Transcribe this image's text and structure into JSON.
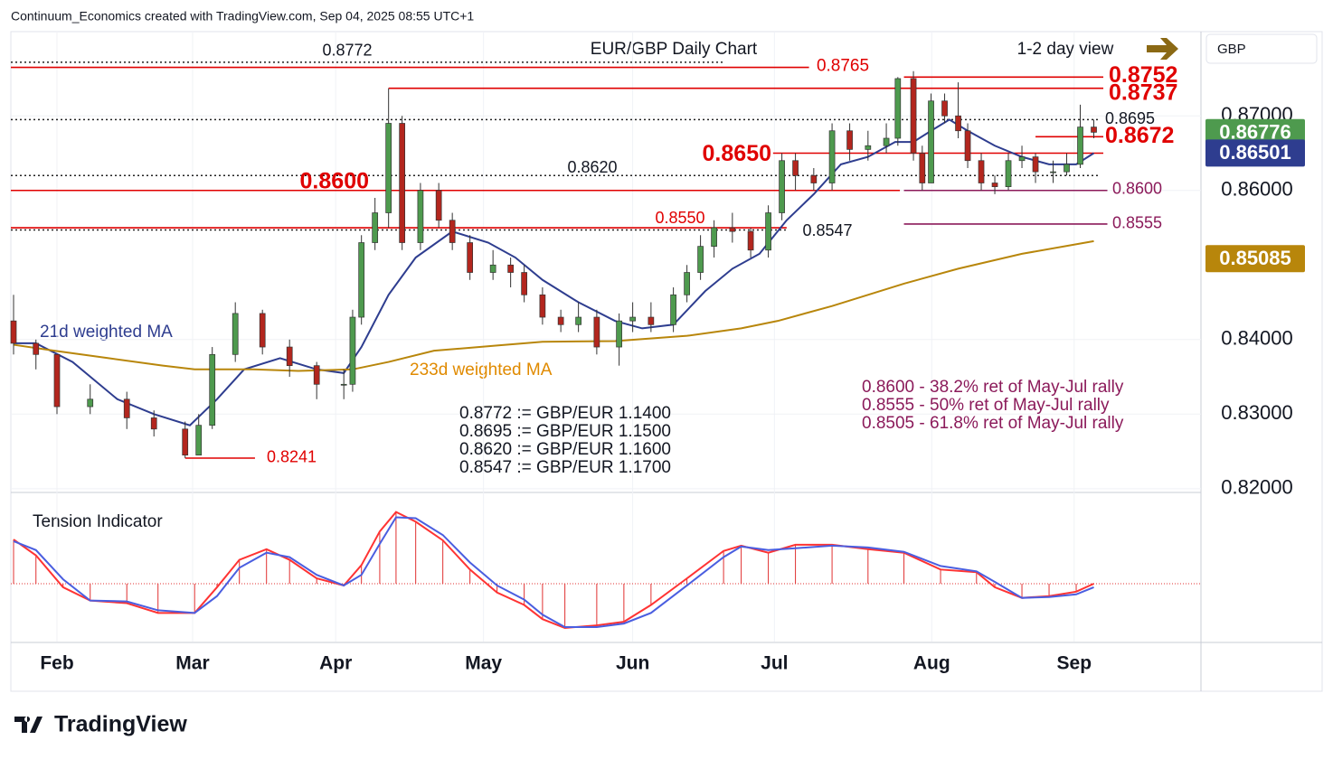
{
  "chart_data": {
    "type": "candlestick",
    "header": "Continuum_Economics created with TradingView.com, Sep 04, 2025 08:55 UTC+1",
    "title": "EUR/GBP Daily Chart",
    "view_note": "1-2 day view",
    "currency": "GBP",
    "brand": "TradingView",
    "up_color": "#4e9a4e",
    "down_color": "#b3261e",
    "x": [
      0.4,
      3.7,
      6.8,
      11.7,
      17.1,
      21.1,
      25.7,
      27.7,
      29.7,
      33.1,
      37.1,
      41.1,
      45.1,
      49.1,
      50.4,
      51.7,
      53.7,
      55.7,
      57.7,
      60.4,
      63.1,
      65.1,
      67.7,
      71.1,
      73.7,
      75.7,
      78.4,
      81.1,
      83.7,
      86.4,
      89.7,
      91.7,
      94.4,
      97.7,
      99.7,
      101.7,
      103.7,
      106.4,
      109.1,
      111.7,
      113.7,
      115.7,
      118.4,
      121.1,
      123.7,
      126.4,
      129.1,
      130.8,
      133.1,
      134.4,
      135.7,
      137.7,
      139.7,
      141.1,
      143.1,
      145.1,
      147.1,
      149.1,
      151.1,
      153.7,
      155.7,
      157.7,
      159.7
    ],
    "open": [
      0.8425,
      0.8395,
      0.838,
      0.831,
      0.832,
      0.8295,
      0.828,
      0.8245,
      0.8285,
      0.838,
      0.8435,
      0.839,
      0.8365,
      0.834,
      0.834,
      0.843,
      0.853,
      0.857,
      0.869,
      0.853,
      0.86,
      0.856,
      0.853,
      0.849,
      0.85,
      0.849,
      0.846,
      0.843,
      0.842,
      0.843,
      0.839,
      0.8425,
      0.843,
      0.842,
      0.846,
      0.849,
      0.8525,
      0.855,
      0.8545,
      0.852,
      0.857,
      0.864,
      0.862,
      0.861,
      0.868,
      0.8655,
      0.866,
      0.867,
      0.875,
      0.865,
      0.861,
      0.872,
      0.87,
      0.868,
      0.864,
      0.861,
      0.8605,
      0.864,
      0.8645,
      0.8625,
      0.8625,
      0.8635,
      0.8685
    ],
    "high": [
      0.846,
      0.84,
      0.838,
      0.834,
      0.833,
      0.8305,
      0.829,
      0.83,
      0.839,
      0.845,
      0.844,
      0.84,
      0.837,
      0.836,
      0.844,
      0.854,
      0.859,
      0.8737,
      0.87,
      0.861,
      0.861,
      0.857,
      0.854,
      0.852,
      0.851,
      0.85,
      0.847,
      0.844,
      0.845,
      0.844,
      0.8435,
      0.845,
      0.845,
      0.847,
      0.85,
      0.854,
      0.856,
      0.857,
      0.855,
      0.858,
      0.865,
      0.865,
      0.863,
      0.869,
      0.869,
      0.868,
      0.869,
      0.8752,
      0.876,
      0.866,
      0.873,
      0.873,
      0.8745,
      0.869,
      0.865,
      0.862,
      0.865,
      0.866,
      0.865,
      0.864,
      0.865,
      0.8715,
      0.8695
    ],
    "low": [
      0.838,
      0.836,
      0.83,
      0.83,
      0.828,
      0.827,
      0.8241,
      0.8245,
      0.828,
      0.837,
      0.838,
      0.835,
      0.832,
      0.832,
      0.833,
      0.842,
      0.852,
      0.855,
      0.852,
      0.852,
      0.855,
      0.852,
      0.848,
      0.848,
      0.847,
      0.845,
      0.842,
      0.841,
      0.841,
      0.838,
      0.8365,
      0.841,
      0.841,
      0.841,
      0.845,
      0.848,
      0.851,
      0.853,
      0.851,
      0.851,
      0.856,
      0.86,
      0.86,
      0.86,
      0.864,
      0.864,
      0.865,
      0.866,
      0.864,
      0.86,
      0.861,
      0.869,
      0.867,
      0.863,
      0.86,
      0.8595,
      0.86,
      0.863,
      0.861,
      0.861,
      0.862,
      0.863,
      0.867
    ],
    "close": [
      0.8395,
      0.838,
      0.831,
      0.832,
      0.8295,
      0.828,
      0.8245,
      0.8285,
      0.838,
      0.8435,
      0.839,
      0.8365,
      0.834,
      0.834,
      0.843,
      0.853,
      0.857,
      0.869,
      0.853,
      0.86,
      0.856,
      0.853,
      0.849,
      0.85,
      0.849,
      0.846,
      0.843,
      0.842,
      0.843,
      0.839,
      0.8425,
      0.843,
      0.842,
      0.846,
      0.849,
      0.8525,
      0.855,
      0.8545,
      0.852,
      0.857,
      0.864,
      0.862,
      0.861,
      0.868,
      0.8655,
      0.866,
      0.867,
      0.875,
      0.865,
      0.861,
      0.872,
      0.87,
      0.868,
      0.864,
      0.861,
      0.8605,
      0.864,
      0.8645,
      0.8625,
      0.8625,
      0.8635,
      0.8685,
      0.8678
    ],
    "xlim": [
      0,
      175.5
    ],
    "xticks": [
      {
        "value": 6.8,
        "label": "Feb"
      },
      {
        "value": 26.8,
        "label": "Mar"
      },
      {
        "value": 47.9,
        "label": "Apr"
      },
      {
        "value": 69.7,
        "label": "May"
      },
      {
        "value": 91.7,
        "label": "Jun"
      },
      {
        "value": 112.6,
        "label": "Jul"
      },
      {
        "value": 135.8,
        "label": "Aug"
      },
      {
        "value": 156.8,
        "label": "Sep"
      }
    ],
    "ylim": [
      0.8201,
      0.8813
    ],
    "yticks": [
      {
        "value": 0.82,
        "label": "0.82000"
      },
      {
        "value": 0.83,
        "label": "0.83000"
      },
      {
        "value": 0.84,
        "label": "0.84000"
      },
      {
        "value": 0.86,
        "label": "0.86000"
      },
      {
        "value": 0.87,
        "label": "0.87000"
      }
    ],
    "grid": true,
    "moving_averages": [
      {
        "name": "21d weighted MA",
        "color": "#2e3d8f",
        "x": [
          0.4,
          3.7,
          9.1,
          15.7,
          21.1,
          26.4,
          30.4,
          34.4,
          39.7,
          45.1,
          49.1,
          51.7,
          55.7,
          59.7,
          65.1,
          70.4,
          74.4,
          78.4,
          83.7,
          89.1,
          93.1,
          97.7,
          102.4,
          106.4,
          110.4,
          114.4,
          118.4,
          122.4,
          126.4,
          130.4,
          133.1,
          135.7,
          138.4,
          141.1,
          145.1,
          149.1,
          153.1,
          157.1,
          159.7
        ],
        "values": [
          0.8395,
          0.8395,
          0.837,
          0.832,
          0.83,
          0.8285,
          0.832,
          0.836,
          0.8375,
          0.836,
          0.8355,
          0.839,
          0.846,
          0.851,
          0.8545,
          0.853,
          0.851,
          0.848,
          0.845,
          0.8425,
          0.8415,
          0.842,
          0.8465,
          0.8495,
          0.8515,
          0.856,
          0.8595,
          0.8635,
          0.8645,
          0.8665,
          0.8665,
          0.868,
          0.8695,
          0.868,
          0.866,
          0.8645,
          0.8635,
          0.8635,
          0.865
        ]
      },
      {
        "name": "233d weighted MA",
        "color": "#b8860b",
        "x": [
          0.4,
          6.4,
          14.4,
          22.4,
          27.1,
          35.7,
          42.4,
          50.4,
          55.7,
          62.4,
          71.7,
          78.4,
          89.1,
          99.7,
          107.7,
          113.1,
          121.1,
          131.7,
          139.7,
          149.1,
          159.7
        ],
        "values": [
          0.8393,
          0.8385,
          0.8375,
          0.8365,
          0.836,
          0.836,
          0.8358,
          0.836,
          0.837,
          0.8385,
          0.8392,
          0.8397,
          0.8398,
          0.8405,
          0.8415,
          0.8425,
          0.8445,
          0.8475,
          0.8495,
          0.8515,
          0.8532
        ]
      }
    ],
    "levels": [
      {
        "value": 0.8772,
        "label": "0.8772",
        "color": "#222222",
        "style": "dotted",
        "start": 0,
        "end": 105.1
      },
      {
        "value": 0.8765,
        "label": "0.8765",
        "color": "#e00000",
        "style": "solid",
        "start": 0,
        "end": 117.7
      },
      {
        "value": 0.8752,
        "label": "0.8752",
        "color": "#e00000",
        "style": "solid",
        "start": 131.7,
        "end": 161.1,
        "bold": true
      },
      {
        "value": 0.8737,
        "label": "0.8737",
        "color": "#e00000",
        "style": "solid",
        "start": 55.7,
        "end": 161.1,
        "bold": true
      },
      {
        "value": 0.8695,
        "label": "0.8695",
        "color": "#222222",
        "style": "dotted",
        "start": 0,
        "end": 160.4
      },
      {
        "value": 0.8672,
        "label": "0.8672",
        "color": "#e00000",
        "style": "solid",
        "start": 151.1,
        "end": 161.1,
        "bold": true
      },
      {
        "value": 0.865,
        "label": "0.8650",
        "color": "#e00000",
        "style": "solid",
        "start": 112.4,
        "end": 161.1,
        "bold": true
      },
      {
        "value": 0.862,
        "label": "0.8620",
        "color": "#222222",
        "style": "dotted",
        "start": 0,
        "end": 160.4
      },
      {
        "value": 0.86,
        "label": "0.8600",
        "color": "#e00000",
        "style": "solid",
        "start": 0,
        "end": 131.1,
        "bold": true
      },
      {
        "value": 0.86,
        "label": "0.8600",
        "color": "#8b1a5a",
        "style": "solid",
        "start": 131.7,
        "end": 161.7
      },
      {
        "value": 0.8555,
        "label": "0.8555",
        "color": "#8b1a5a",
        "style": "solid",
        "start": 131.7,
        "end": 161.7
      },
      {
        "value": 0.855,
        "label": "0.8550",
        "color": "#e00000",
        "style": "solid",
        "start": 0,
        "end": 114.4
      },
      {
        "value": 0.8547,
        "label": "0.8547",
        "color": "#222222",
        "style": "dotted",
        "start": 0,
        "end": 114.4
      },
      {
        "value": 0.8241,
        "label": "0.8241",
        "color": "#e00000",
        "style": "solid",
        "start": 25.7,
        "end": 36
      }
    ],
    "price_labels": [
      {
        "value": 0.86776,
        "color": "#4e9a4e"
      },
      {
        "value": 0.86501,
        "color": "#2e3d8f"
      },
      {
        "value": 0.85085,
        "color": "#b8860b"
      }
    ],
    "notes_gbp": [
      "0.8772 := GBP/EUR 1.1400",
      "0.8695 := GBP/EUR 1.1500",
      "0.8620 := GBP/EUR 1.1600",
      "0.8547 := GBP/EUR 1.1700"
    ],
    "notes_fib": [
      "0.8600 - 38.2% ret of May-Jul rally",
      "0.8555 - 50% ret of May-Jul rally",
      "0.8505 - 61.8% ret of May-Jul rally"
    ],
    "notes_fib_color": "#8b1a5a",
    "indicator": {
      "title": "Tension Indicator",
      "ylim": [
        -0.653,
        1
      ],
      "hist_color": "#e03030",
      "series": [
        {
          "color": "#ff3333",
          "x": [
            0.4,
            3.7,
            7.7,
            11.7,
            17.1,
            21.7,
            27.1,
            30.4,
            33.7,
            37.7,
            41.1,
            45.1,
            49.1,
            51.7,
            54.4,
            56.8,
            59.7,
            63.7,
            67.7,
            71.7,
            75.7,
            78.4,
            81.7,
            86.4,
            90.4,
            94.4,
            99.7,
            105.1,
            107.7,
            111.7,
            115.7,
            121.1,
            126.4,
            131.7,
            137.1,
            142.4,
            145.1,
            149.1,
            153.1,
            157.1,
            159.7
          ],
          "values": [
            0.5,
            0.32,
            -0.04,
            -0.19,
            -0.22,
            -0.33,
            -0.33,
            -0.04,
            0.27,
            0.39,
            0.27,
            0.06,
            -0.02,
            0.21,
            0.59,
            0.81,
            0.7,
            0.49,
            0.16,
            -0.1,
            -0.24,
            -0.4,
            -0.5,
            -0.47,
            -0.43,
            -0.24,
            0.06,
            0.37,
            0.43,
            0.35,
            0.44,
            0.44,
            0.39,
            0.35,
            0.16,
            0.13,
            -0.04,
            -0.16,
            -0.14,
            -0.09,
            0
          ]
        },
        {
          "color": "#4a5ee0",
          "x": [
            0.4,
            3.7,
            7.7,
            11.7,
            17.1,
            21.7,
            27.1,
            30.4,
            33.7,
            37.7,
            41.1,
            45.1,
            49.1,
            51.7,
            54.4,
            56.8,
            59.7,
            63.7,
            67.7,
            71.7,
            75.7,
            78.4,
            81.7,
            86.4,
            90.4,
            94.4,
            99.7,
            105.1,
            107.7,
            111.7,
            115.7,
            121.1,
            126.4,
            131.7,
            137.1,
            142.4,
            145.1,
            149.1,
            153.1,
            157.1,
            159.7
          ],
          "values": [
            0.48,
            0.38,
            0.05,
            -0.19,
            -0.2,
            -0.3,
            -0.33,
            -0.14,
            0.18,
            0.35,
            0.3,
            0.1,
            -0.02,
            0.1,
            0.45,
            0.75,
            0.74,
            0.55,
            0.24,
            -0.02,
            -0.18,
            -0.35,
            -0.49,
            -0.49,
            -0.45,
            -0.33,
            -0.02,
            0.3,
            0.42,
            0.38,
            0.4,
            0.43,
            0.41,
            0.36,
            0.2,
            0.14,
            0.02,
            -0.16,
            -0.15,
            -0.12,
            -0.04
          ]
        }
      ]
    }
  }
}
